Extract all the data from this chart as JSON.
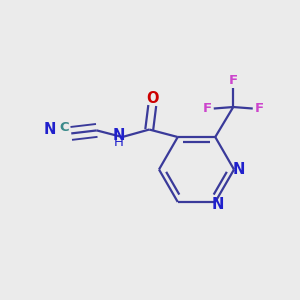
{
  "background_color": "#ebebeb",
  "bond_color": "#3a3a9a",
  "n_color": "#2020cc",
  "o_color": "#cc0000",
  "f_color": "#cc44cc",
  "c_color": "#3a8a8a",
  "line_width": 1.6,
  "dbo": 0.012,
  "font_size": 9.5,
  "figsize": [
    3.0,
    3.0
  ],
  "dpi": 100,
  "xlim": [
    0,
    1
  ],
  "ylim": [
    0,
    1
  ]
}
